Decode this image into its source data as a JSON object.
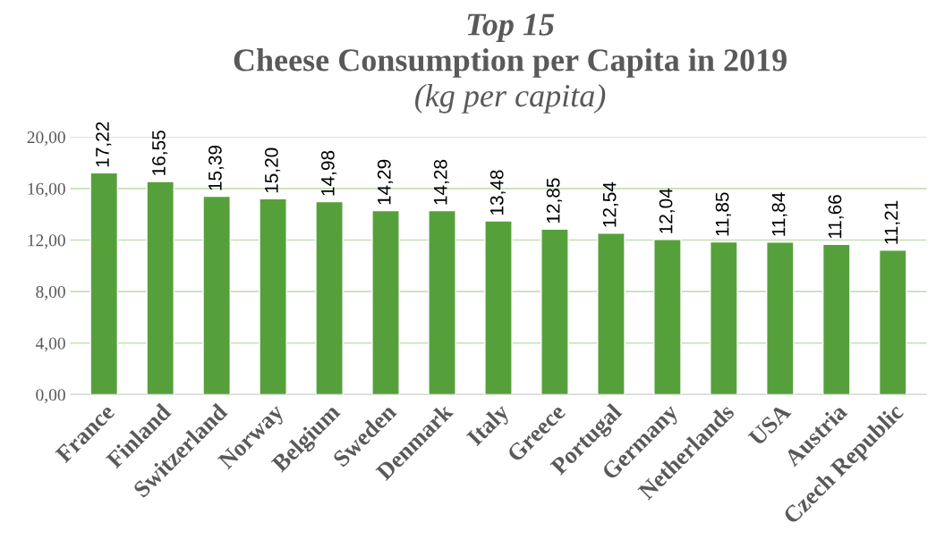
{
  "chart_data": {
    "type": "bar",
    "title": "Top 15",
    "subtitle": "Cheese Consumption per Capita in 2019",
    "annotations": [
      "(kg per capita)"
    ],
    "categories": [
      "France",
      "Finland",
      "Switzerland",
      "Norway",
      "Belgium",
      "Sweden",
      "Denmark",
      "Italy",
      "Greece",
      "Portugal",
      "Germany",
      "Netherlands",
      "USA",
      "Austria",
      "Czech Republic"
    ],
    "values": [
      17.22,
      16.55,
      15.39,
      15.2,
      14.98,
      14.29,
      14.28,
      13.48,
      12.85,
      12.54,
      12.04,
      11.85,
      11.84,
      11.66,
      11.21
    ],
    "value_labels": [
      "17,22",
      "16,55",
      "15,39",
      "15,20",
      "14,98",
      "14,29",
      "14,28",
      "13,48",
      "12,85",
      "12,54",
      "12,04",
      "11,85",
      "11,84",
      "11,66",
      "11,21"
    ],
    "color": "#56a03c",
    "ylim": [
      0,
      20
    ],
    "yticks": [
      {
        "value": 0,
        "label": "0,00"
      },
      {
        "value": 4,
        "label": "4,00"
      },
      {
        "value": 8,
        "label": "8,00"
      },
      {
        "value": 12,
        "label": "12,00"
      },
      {
        "value": 16,
        "label": "16,00"
      },
      {
        "value": 20,
        "label": "20,00"
      }
    ],
    "grid": "y"
  }
}
